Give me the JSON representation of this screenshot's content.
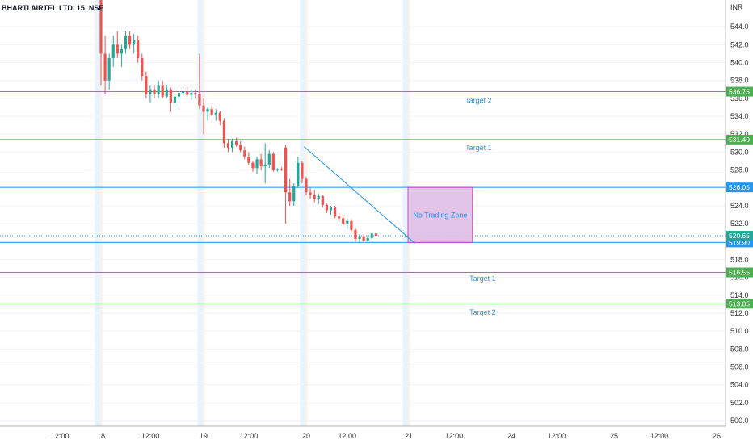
{
  "chart_data": {
    "type": "candlestick",
    "title": "BHARTI AIRTEL LTD, 15, NSE",
    "currency_label": "INR",
    "ylim": [
      499,
      547
    ],
    "y_ticks": [
      500,
      502,
      504,
      506,
      508,
      510,
      512,
      514,
      516,
      518,
      520,
      522,
      524,
      526,
      528,
      530,
      532,
      534,
      536,
      538,
      540,
      542,
      544
    ],
    "x_ticks": [
      {
        "label": "12:00",
        "bar": -10
      },
      {
        "label": "18",
        "bar": 0
      },
      {
        "label": "12:00",
        "bar": 12
      },
      {
        "label": "19",
        "bar": 25
      },
      {
        "label": "12:00",
        "bar": 36
      },
      {
        "label": "20",
        "bar": 50
      },
      {
        "label": "12:00",
        "bar": 60
      },
      {
        "label": "21",
        "bar": 75
      },
      {
        "label": "12:00",
        "bar": 86
      },
      {
        "label": "24",
        "bar": 100
      },
      {
        "label": "12:00",
        "bar": 111
      },
      {
        "label": "25",
        "bar": 125
      },
      {
        "label": "12:00",
        "bar": 136
      },
      {
        "label": "26",
        "bar": 150
      }
    ],
    "session_bands": [
      {
        "from": -1.5,
        "to": 0.3
      },
      {
        "from": 23.5,
        "to": 25.3
      },
      {
        "from": 48.5,
        "to": 50.3
      },
      {
        "from": 73.5,
        "to": 75.3
      }
    ],
    "bars": [
      [
        547.5,
        548.5,
        537.5,
        541.0
      ],
      [
        541.0,
        543.0,
        536.5,
        538.0
      ],
      [
        538.0,
        541.0,
        537.0,
        540.5
      ],
      [
        540.5,
        543.0,
        539.5,
        542.0
      ],
      [
        542.0,
        543.5,
        540.5,
        541.0
      ],
      [
        541.0,
        542.0,
        539.5,
        541.5
      ],
      [
        541.5,
        543.5,
        541.0,
        543.0
      ],
      [
        543.0,
        543.5,
        541.5,
        542.0
      ],
      [
        542.0,
        543.2,
        541.0,
        542.5
      ],
      [
        542.5,
        543.0,
        540.0,
        540.5
      ],
      [
        540.5,
        541.0,
        538.0,
        538.5
      ],
      [
        538.5,
        539.0,
        536.0,
        536.5
      ],
      [
        536.5,
        537.5,
        535.5,
        537.0
      ],
      [
        537.0,
        537.5,
        536.0,
        536.5
      ],
      [
        536.5,
        538.0,
        536.0,
        537.5
      ],
      [
        537.5,
        538.0,
        536.0,
        536.2
      ],
      [
        536.2,
        537.5,
        536.0,
        537.0
      ],
      [
        537.0,
        537.2,
        534.5,
        535.5
      ],
      [
        535.5,
        536.5,
        535.0,
        536.2
      ],
      [
        536.2,
        537.0,
        535.8,
        536.6
      ],
      [
        536.6,
        537.0,
        536.2,
        536.8
      ],
      [
        536.8,
        537.3,
        536.2,
        536.4
      ],
      [
        536.4,
        537.0,
        535.8,
        536.6
      ],
      [
        536.6,
        537.0,
        536.0,
        536.5
      ],
      [
        536.5,
        541.0,
        534.8,
        535.2
      ],
      [
        535.2,
        536.0,
        532.0,
        534.5
      ],
      [
        534.5,
        535.0,
        533.5,
        534.8
      ],
      [
        534.8,
        535.2,
        534.0,
        534.2
      ],
      [
        534.2,
        534.8,
        533.5,
        534.4
      ],
      [
        534.4,
        534.6,
        533.0,
        533.5
      ],
      [
        533.5,
        533.8,
        530.5,
        531.0
      ],
      [
        531.0,
        531.5,
        530.0,
        530.5
      ],
      [
        530.5,
        531.5,
        530.0,
        531.2
      ],
      [
        531.2,
        531.6,
        530.6,
        530.8
      ],
      [
        530.8,
        531.2,
        530.0,
        530.2
      ],
      [
        530.2,
        530.6,
        529.2,
        529.5
      ],
      [
        529.5,
        530.0,
        528.5,
        528.8
      ],
      [
        528.8,
        529.0,
        527.8,
        528.2
      ],
      [
        528.2,
        529.5,
        527.5,
        529.2
      ],
      [
        529.2,
        529.8,
        528.0,
        528.4
      ],
      [
        528.4,
        531.0,
        526.5,
        528.6
      ],
      [
        528.6,
        530.2,
        528.2,
        529.8
      ],
      [
        529.8,
        530.0,
        527.8,
        528.0
      ],
      [
        528.0,
        528.2,
        527.8,
        528.1
      ],
      [
        528.1,
        528.3,
        527.9,
        528.0
      ],
      [
        530.5,
        530.8,
        522.0,
        525.5
      ],
      [
        525.5,
        527.0,
        524.0,
        524.5
      ],
      [
        524.5,
        526.5,
        524.0,
        526.2
      ],
      [
        526.2,
        529.5,
        526.0,
        528.8
      ],
      [
        528.8,
        529.0,
        526.5,
        527.0
      ],
      [
        527.0,
        527.2,
        525.2,
        525.5
      ],
      [
        525.5,
        526.0,
        524.8,
        525.2
      ],
      [
        525.2,
        525.8,
        524.4,
        524.8
      ],
      [
        524.8,
        525.4,
        524.2,
        525.1
      ],
      [
        525.1,
        525.2,
        523.8,
        524.1
      ],
      [
        524.1,
        524.3,
        523.2,
        523.5
      ],
      [
        523.5,
        524.0,
        523.0,
        523.8
      ],
      [
        523.8,
        524.0,
        522.6,
        522.8
      ],
      [
        522.8,
        523.2,
        522.2,
        522.6
      ],
      [
        522.6,
        523.0,
        521.8,
        522.0
      ],
      [
        522.0,
        522.6,
        521.4,
        522.3
      ],
      [
        522.3,
        522.5,
        521.0,
        521.3
      ],
      [
        521.3,
        521.5,
        520.0,
        520.3
      ],
      [
        520.3,
        520.8,
        519.8,
        520.6
      ],
      [
        520.6,
        520.8,
        519.9,
        520.1
      ],
      [
        520.1,
        520.7,
        519.9,
        520.4
      ],
      [
        520.4,
        521.0,
        520.2,
        520.9
      ],
      [
        520.9,
        521.0,
        520.5,
        520.65
      ]
    ],
    "horizontal_lines": [
      {
        "price": 536.75,
        "color": "#4caf50",
        "badge": "536.75",
        "text": "Target 2",
        "text_y": 535.5,
        "text_bar": 92
      },
      {
        "price": 531.4,
        "color": "#4caf50",
        "badge": "531.40",
        "text": "Target 1",
        "text_y": 530.2,
        "text_bar": 92
      },
      {
        "price": 526.05,
        "color": "#2196f3",
        "badge": "526.05",
        "text": "",
        "text_y": 0,
        "text_bar": 0
      },
      {
        "price": 519.9,
        "color": "#2196f3",
        "badge": "519.90",
        "text": "",
        "text_y": 0,
        "text_bar": 0
      },
      {
        "price": 516.55,
        "color": "#4caf50",
        "badge": "516.55",
        "text": "Target 1",
        "text_y": 515.6,
        "text_bar": 93
      },
      {
        "price": 513.05,
        "color": "#4caf50",
        "badge": "513.05",
        "text": "Target 2",
        "text_y": 511.8,
        "text_bar": 93
      }
    ],
    "last_price": {
      "price": 520.65,
      "badge": "520.65",
      "color": "#26a69a"
    },
    "trend_line": {
      "from_bar": 49.5,
      "from_price": 530.6,
      "to_bar": 76.5,
      "to_price": 519.8,
      "color": "#2196f3"
    },
    "zone": {
      "label": "No Trading Zone",
      "from_bar": 74.8,
      "to_bar": 90.5,
      "top": 526.05,
      "bottom": 519.9,
      "fill": "#e1bee7",
      "stroke": "#c040c0"
    },
    "colors": {
      "up": "#26a69a",
      "down": "#ef5350",
      "grid": "#f0f3fa",
      "axis": "#b2b5be"
    }
  }
}
